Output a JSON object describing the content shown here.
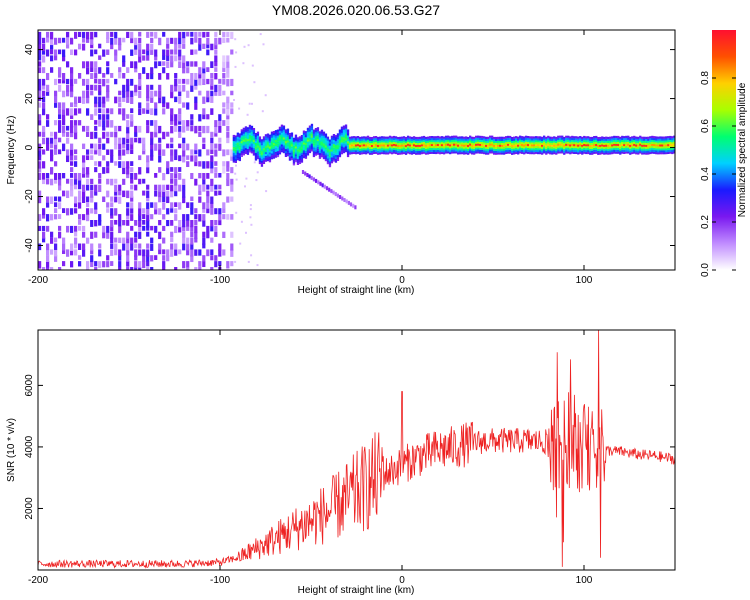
{
  "chart_data": [
    {
      "type": "heatmap",
      "title": "YM08.2026.020.06.53.G27",
      "xlabel": "Height of straight line (km)",
      "ylabel": "Frequency (Hz)",
      "xlim": [
        -200,
        150
      ],
      "ylim": [
        -50,
        48
      ],
      "x_ticks": [
        -200,
        -100,
        0,
        100
      ],
      "x_tick_labels": [
        "-200",
        "-100",
        "0",
        "100"
      ],
      "y_ticks": [
        -40,
        -20,
        0,
        20,
        40
      ],
      "y_tick_labels": [
        "-40",
        "-20",
        "0",
        "20",
        "40"
      ],
      "colorbar": {
        "label": "Normalized spectral amplitude",
        "range": [
          0,
          1
        ],
        "ticks": [
          0.0,
          0.2,
          0.4,
          0.6,
          0.8
        ],
        "tick_labels": [
          "0.0",
          "0.2",
          "0.4",
          "0.6",
          "0.8"
        ],
        "colors": [
          "#ffffff",
          "#c08cff",
          "#7a18f0",
          "#1a1aff",
          "#00d0ff",
          "#00ff70",
          "#a8ff00",
          "#ffd000",
          "#ff5000",
          "#ff1030"
        ]
      },
      "regions": [
        {
          "name": "noise",
          "x_range": [
            -200,
            -93
          ],
          "freq_range": [
            -50,
            48
          ],
          "amplitude": "0.1-0.3"
        },
        {
          "name": "signal-track",
          "x_range": [
            -93,
            150
          ],
          "freq_center": 1,
          "amplitude_peak": 0.95
        },
        {
          "name": "secondary-branch",
          "x_range": [
            -55,
            -25
          ],
          "freq_range": [
            -10,
            -25
          ]
        }
      ]
    },
    {
      "type": "line",
      "xlabel": "Height of straight line (km)",
      "ylabel": "SNR (10 * v/v)",
      "xlim": [
        -200,
        150
      ],
      "ylim": [
        0,
        7800
      ],
      "x_ticks": [
        -200,
        -100,
        0,
        100
      ],
      "x_tick_labels": [
        "-200",
        "-100",
        "0",
        "100"
      ],
      "y_ticks": [
        2000,
        4000,
        6000
      ],
      "y_tick_labels": [
        "2000",
        "4000",
        "6000"
      ],
      "line_color": "#ee2222",
      "series": [
        {
          "name": "SNR",
          "x": [
            -200,
            -180,
            -160,
            -140,
            -120,
            -100,
            -90,
            -80,
            -70,
            -60,
            -50,
            -40,
            -30,
            -20,
            -10,
            0,
            10,
            20,
            30,
            40,
            50,
            60,
            70,
            80,
            90,
            100,
            110,
            120,
            130,
            140,
            150
          ],
          "values": [
            200,
            200,
            200,
            200,
            200,
            250,
            400,
            700,
            1000,
            1300,
            1600,
            1900,
            2300,
            2700,
            3100,
            3400,
            3700,
            3900,
            4000,
            4150,
            4200,
            4200,
            4200,
            4150,
            4100,
            4000,
            3900,
            3850,
            3750,
            3700,
            3600
          ]
        }
      ],
      "peaks": [
        {
          "x": 0,
          "value": 5800
        },
        {
          "x": 88,
          "value": 6400
        },
        {
          "x": 108,
          "value": 7800
        }
      ],
      "dips": [
        {
          "x": 88,
          "value": 100
        },
        {
          "x": 109,
          "value": 400
        }
      ]
    }
  ]
}
